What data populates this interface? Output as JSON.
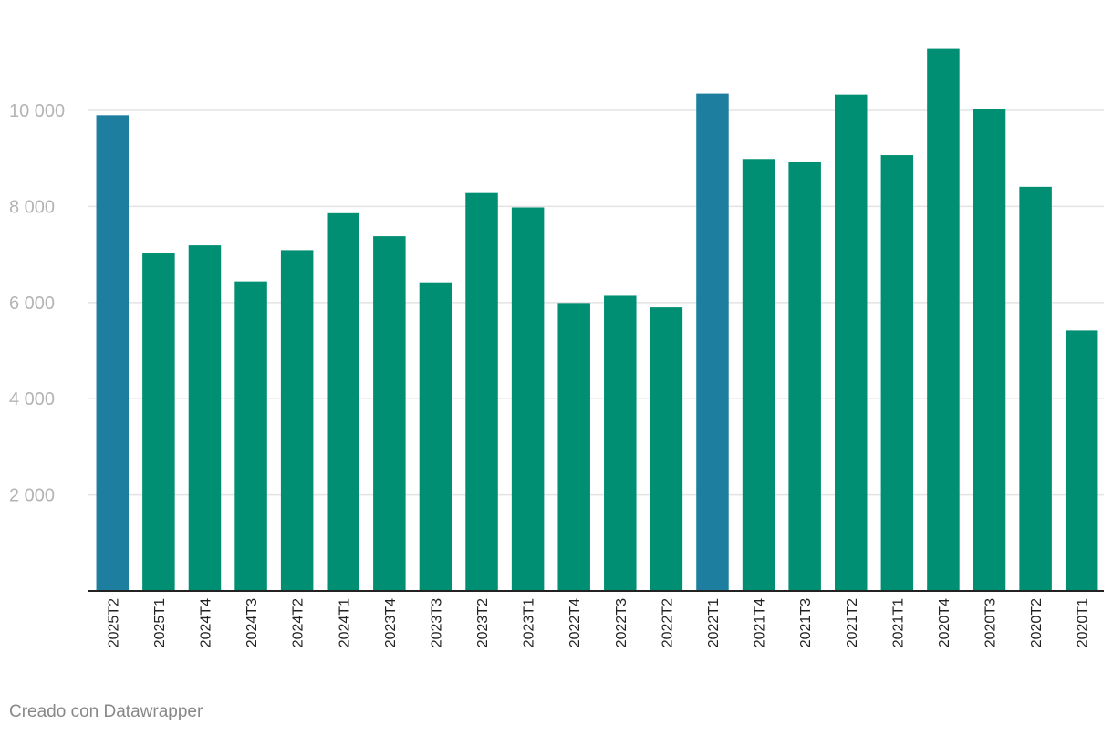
{
  "chart_data": {
    "type": "bar",
    "categories": [
      "2025T2",
      "2025T1",
      "2024T4",
      "2024T3",
      "2024T2",
      "2024T1",
      "2023T4",
      "2023T3",
      "2023T2",
      "2023T1",
      "2022T4",
      "2022T3",
      "2022T2",
      "2022T1",
      "2021T4",
      "2021T3",
      "2021T2",
      "2021T1",
      "2020T4",
      "2020T3",
      "2020T2",
      "2020T1"
    ],
    "values": [
      9900,
      7040,
      7190,
      6440,
      7090,
      7860,
      7380,
      6420,
      8280,
      7980,
      5990,
      6140,
      5900,
      10350,
      8990,
      8920,
      10330,
      9070,
      11280,
      10020,
      8410,
      5420
    ],
    "highlighted": [
      "2025T2",
      "2022T1"
    ],
    "ylim": [
      0,
      11500
    ],
    "yticks": [
      {
        "value": 2000,
        "label": "2 000"
      },
      {
        "value": 4000,
        "label": "4 000"
      },
      {
        "value": 6000,
        "label": "6 000"
      },
      {
        "value": 8000,
        "label": "8 000"
      },
      {
        "value": 10000,
        "label": "10 000"
      }
    ],
    "grid": true,
    "colors": {
      "bar": "#008f72",
      "highlight": "#1d7e9f",
      "grid": "#e3e3e3",
      "axis": "#222222"
    }
  },
  "footer": {
    "credit": "Creado con Datawrapper"
  }
}
